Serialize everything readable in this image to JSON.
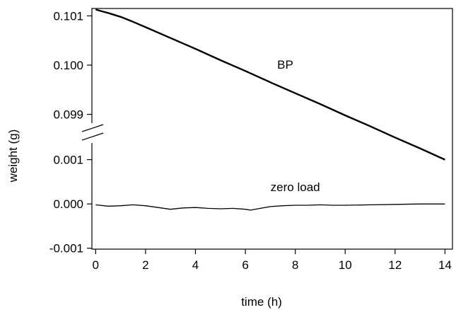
{
  "chart_data": {
    "type": "line",
    "xlabel": "time (h)",
    "ylabel": "weight (g)",
    "xlim": [
      -0.15,
      14.3
    ],
    "x_ticks": [
      "0",
      "2",
      "4",
      "6",
      "8",
      "10",
      "12",
      "14"
    ],
    "x_tick_values": [
      0,
      2,
      4,
      6,
      8,
      10,
      12,
      14
    ],
    "y_axis_broken": true,
    "y_segments": {
      "upper": {
        "range": [
          0.09862,
          0.10115
        ],
        "ticks": [
          "0.101",
          "0.100",
          "0.099"
        ],
        "tick_values": [
          0.101,
          0.1,
          0.099
        ]
      },
      "lower": {
        "range": [
          -0.00102,
          0.0016
        ],
        "ticks": [
          "0.001",
          "0.000",
          "-0.001"
        ],
        "tick_values": [
          0.001,
          0.0,
          -0.001
        ]
      }
    },
    "grid": false,
    "series": [
      {
        "name": "BP",
        "segment": "upper",
        "x": [
          0,
          0.2,
          0.5,
          1.0,
          1.5,
          2,
          3,
          4,
          5,
          6,
          7,
          8,
          9,
          10,
          11,
          12,
          13,
          14
        ],
        "y": [
          0.10113,
          0.1011,
          0.10106,
          0.10098,
          0.10088,
          0.10077,
          0.10055,
          0.10033,
          0.1001,
          0.09988,
          0.09965,
          0.09943,
          0.09921,
          0.09898,
          0.09876,
          0.09853,
          0.09831,
          0.09808
        ]
      },
      {
        "name": "zero load",
        "segment": "lower",
        "x": [
          0,
          0.5,
          1.0,
          1.5,
          2.0,
          2.5,
          3.0,
          3.5,
          4.0,
          4.5,
          5.0,
          5.5,
          6.0,
          6.2,
          6.5,
          7.0,
          7.5,
          8.0,
          8.5,
          9.0,
          9.5,
          10.0,
          11.0,
          12.0,
          13.0,
          14.0
        ],
        "y": [
          -2e-05,
          -5e-05,
          -4e-05,
          -2e-05,
          -4e-05,
          -8e-05,
          -0.00012,
          -9e-05,
          -8e-05,
          -0.0001,
          -0.00011,
          -0.0001,
          -0.00012,
          -0.00014,
          -0.00011,
          -6e-05,
          -4e-05,
          -3e-05,
          -3e-05,
          -2e-05,
          -3e-05,
          -3e-05,
          -2e-05,
          -1e-05,
          0.0,
          0.0
        ]
      }
    ],
    "annotations": [
      {
        "text": "BP",
        "x": 7.6,
        "y": 0.09993
      },
      {
        "text": "zero load",
        "x": 8.0,
        "y": 0.00029
      }
    ]
  }
}
